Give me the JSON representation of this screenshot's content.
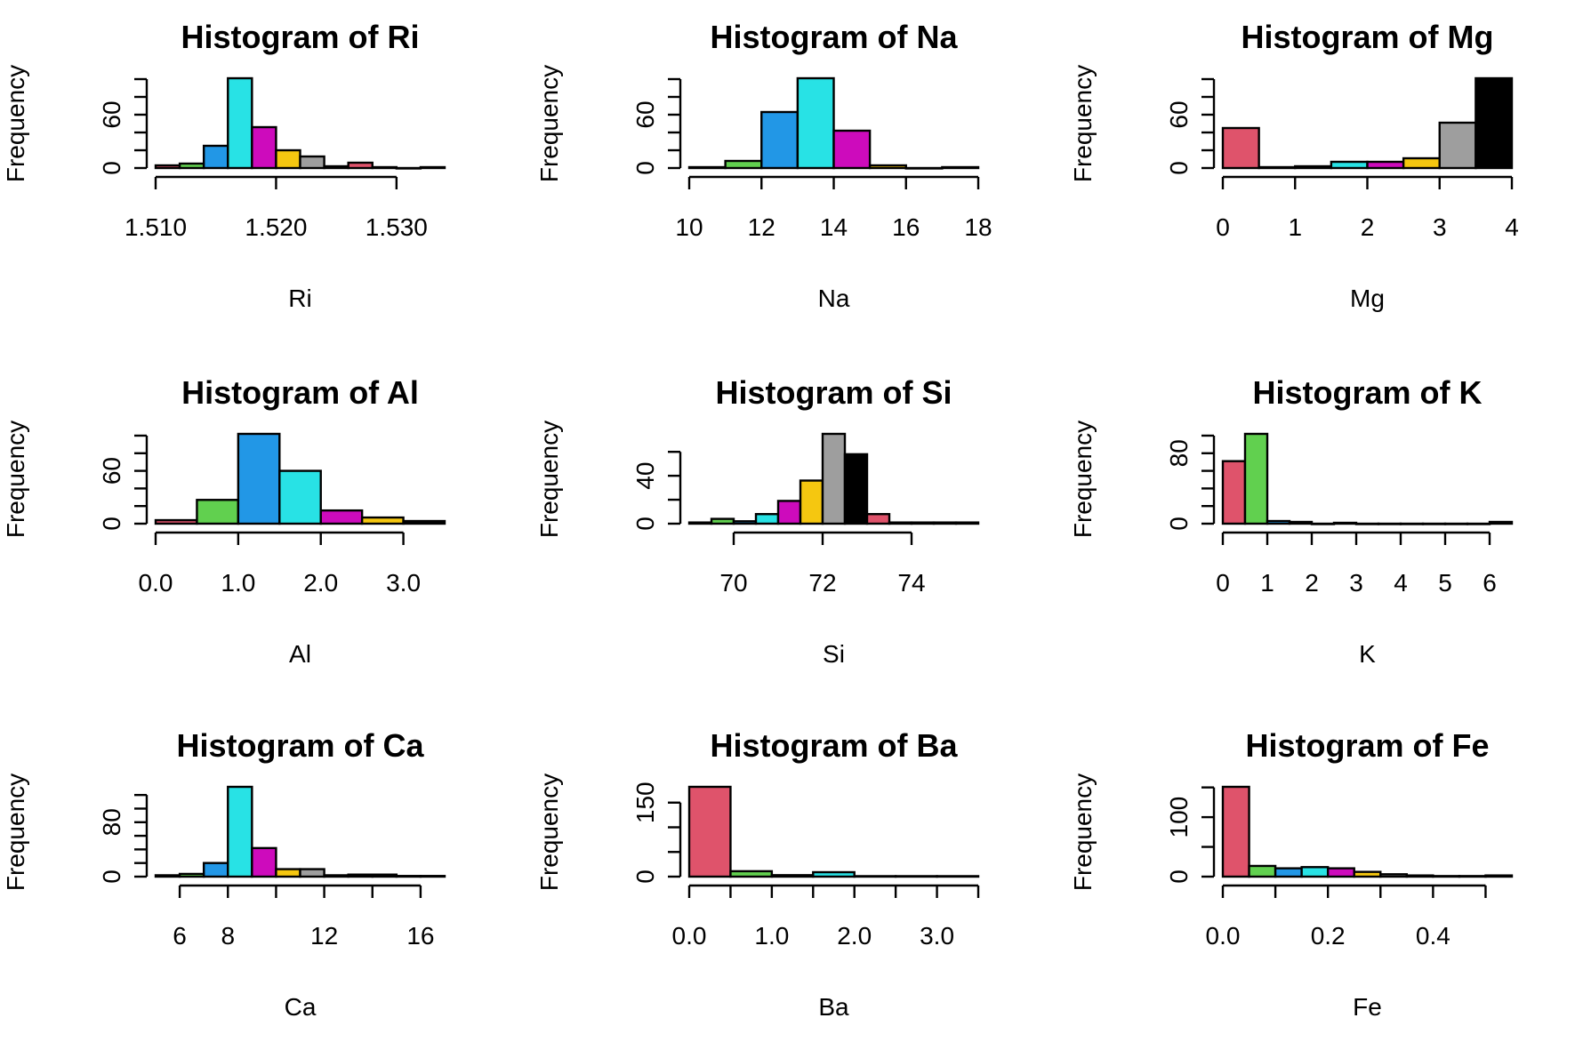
{
  "chart_data": [
    {
      "type": "bar",
      "title": "Histogram of Ri",
      "xlabel": "Ri",
      "ylabel": "Frequency",
      "bin_edges": [
        1.51,
        1.512,
        1.514,
        1.516,
        1.518,
        1.52,
        1.522,
        1.524,
        1.526,
        1.528,
        1.53,
        1.532,
        1.534
      ],
      "values": [
        3,
        5,
        25,
        101,
        46,
        20,
        13,
        2,
        6,
        1,
        0,
        1
      ],
      "colors": [
        "#DF536B",
        "#61D04F",
        "#2297E6",
        "#28E2E5",
        "#CD0BBC",
        "#F5C710",
        "#9E9E9E",
        "#000000",
        "#DF536B",
        "#61D04F",
        "#2297E6",
        "#28E2E5"
      ],
      "xticks": [
        1.51,
        1.52,
        1.53
      ],
      "xtick_labels": [
        "1.510",
        "1.520",
        "1.530"
      ],
      "yticks": [
        0,
        60
      ],
      "ytick_labels": [
        "0",
        "60"
      ],
      "ytick_minor": [
        0,
        20,
        40,
        60,
        80,
        100
      ],
      "xaxis": [
        1.51,
        1.534
      ],
      "ylim": [
        0,
        101
      ]
    },
    {
      "type": "bar",
      "title": "Histogram of Na",
      "xlabel": "Na",
      "ylabel": "Frequency",
      "bin_edges": [
        10,
        11,
        12,
        13,
        14,
        15,
        16,
        17,
        18
      ],
      "values": [
        1,
        8,
        63,
        101,
        42,
        3,
        0,
        1
      ],
      "colors": [
        "#DF536B",
        "#61D04F",
        "#2297E6",
        "#28E2E5",
        "#CD0BBC",
        "#F5C710",
        "#9E9E9E",
        "#000000"
      ],
      "xticks": [
        10,
        12,
        14,
        16,
        18
      ],
      "xtick_labels": [
        "10",
        "12",
        "14",
        "16",
        "18"
      ],
      "yticks": [
        0,
        60
      ],
      "ytick_labels": [
        "0",
        "60"
      ],
      "ytick_minor": [
        0,
        20,
        40,
        60,
        80,
        100
      ],
      "xaxis": [
        10,
        18
      ],
      "ylim": [
        0,
        101
      ]
    },
    {
      "type": "bar",
      "title": "Histogram of Mg",
      "xlabel": "Mg",
      "ylabel": "Frequency",
      "bin_edges": [
        0,
        0.5,
        1,
        1.5,
        2,
        2.5,
        3,
        3.5,
        4
      ],
      "values": [
        45,
        1,
        2,
        7,
        7,
        11,
        51,
        101
      ],
      "colors": [
        "#DF536B",
        "#61D04F",
        "#2297E6",
        "#28E2E5",
        "#CD0BBC",
        "#F5C710",
        "#9E9E9E",
        "#000000"
      ],
      "xticks": [
        0,
        1,
        2,
        3,
        4
      ],
      "xtick_labels": [
        "0",
        "1",
        "2",
        "3",
        "4"
      ],
      "yticks": [
        0,
        60
      ],
      "ytick_labels": [
        "0",
        "60"
      ],
      "ytick_minor": [
        0,
        20,
        40,
        60,
        80,
        100
      ],
      "xaxis": [
        0,
        4
      ],
      "ylim": [
        0,
        101
      ]
    },
    {
      "type": "bar",
      "title": "Histogram of Al",
      "xlabel": "Al",
      "ylabel": "Frequency",
      "bin_edges": [
        0,
        0.5,
        1,
        1.5,
        2,
        2.5,
        3,
        3.5
      ],
      "values": [
        4,
        27,
        102,
        60,
        15,
        7,
        3
      ],
      "colors": [
        "#DF536B",
        "#61D04F",
        "#2297E6",
        "#28E2E5",
        "#CD0BBC",
        "#F5C710",
        "#000000"
      ],
      "xticks": [
        0,
        1,
        2,
        3
      ],
      "xtick_labels": [
        "0.0",
        "1.0",
        "2.0",
        "3.0"
      ],
      "yticks": [
        0,
        60
      ],
      "ytick_labels": [
        "0",
        "60"
      ],
      "ytick_minor": [
        0,
        20,
        40,
        60,
        80,
        100
      ],
      "xaxis": [
        0,
        3.5
      ],
      "ylim": [
        0,
        102
      ]
    },
    {
      "type": "bar",
      "title": "Histogram of Si",
      "xlabel": "Si",
      "ylabel": "Frequency",
      "bin_edges": [
        69,
        69.5,
        70,
        70.5,
        71,
        71.5,
        72,
        72.5,
        73,
        73.5,
        74,
        74.5,
        75,
        75.5
      ],
      "values": [
        1,
        4,
        2,
        8,
        19,
        36,
        75,
        58,
        8,
        1,
        1,
        1,
        1
      ],
      "colors": [
        "#000000",
        "#61D04F",
        "#2297E6",
        "#28E2E5",
        "#CD0BBC",
        "#F5C710",
        "#9E9E9E",
        "#000000",
        "#DF536B",
        "#61D04F",
        "#2297E6",
        "#28E2E5",
        "#000000"
      ],
      "xticks": [
        70,
        72,
        74
      ],
      "xtick_labels": [
        "70",
        "72",
        "74"
      ],
      "yticks": [
        0,
        40
      ],
      "ytick_labels": [
        "0",
        "40"
      ],
      "ytick_minor": [
        0,
        20,
        40,
        60
      ],
      "xaxis": [
        69,
        75.5
      ],
      "ylim": [
        0,
        75
      ]
    },
    {
      "type": "bar",
      "title": "Histogram of K",
      "xlabel": "K",
      "ylabel": "Frequency",
      "bin_edges": [
        0,
        0.5,
        1,
        1.5,
        2,
        2.5,
        3,
        3.5,
        4,
        4.5,
        5,
        5.5,
        6,
        6.5
      ],
      "values": [
        71,
        102,
        3,
        2,
        0,
        1,
        0,
        0,
        0,
        0,
        0,
        0,
        2
      ],
      "colors": [
        "#DF536B",
        "#61D04F",
        "#2297E6",
        "#28E2E5",
        "#CD0BBC",
        "#F5C710",
        "#9E9E9E",
        "#000000",
        "#DF536B",
        "#61D04F",
        "#2297E6",
        "#28E2E5",
        "#000000"
      ],
      "xticks": [
        0,
        1,
        2,
        3,
        4,
        5,
        6
      ],
      "xtick_labels": [
        "0",
        "1",
        "2",
        "3",
        "4",
        "5",
        "6"
      ],
      "yticks": [
        0,
        80
      ],
      "ytick_labels": [
        "0",
        "80"
      ],
      "ytick_minor": [
        0,
        20,
        40,
        60,
        80,
        100
      ],
      "xaxis": [
        0,
        6.5
      ],
      "ylim": [
        0,
        102
      ]
    },
    {
      "type": "bar",
      "title": "Histogram of Ca",
      "xlabel": "Ca",
      "ylabel": "Frequency",
      "bin_edges": [
        5,
        6,
        7,
        8,
        9,
        10,
        11,
        12,
        13,
        14,
        15,
        16,
        17
      ],
      "values": [
        2,
        4,
        20,
        132,
        42,
        11,
        11,
        2,
        3,
        3,
        1,
        1
      ],
      "colors": [
        "#DF536B",
        "#61D04F",
        "#2297E6",
        "#28E2E5",
        "#CD0BBC",
        "#F5C710",
        "#9E9E9E",
        "#000000",
        "#DF536B",
        "#61D04F",
        "#2297E6",
        "#28E2E5"
      ],
      "xticks": [
        6,
        8,
        12,
        16
      ],
      "xtick_labels": [
        "6",
        "8",
        "12",
        "16"
      ],
      "xtick_minor": [
        6,
        8,
        10,
        12,
        14,
        16
      ],
      "yticks": [
        0,
        80
      ],
      "ytick_labels": [
        "0",
        "80"
      ],
      "ytick_minor": [
        0,
        20,
        40,
        60,
        80,
        100,
        120
      ],
      "xaxis": [
        5,
        17
      ],
      "ylim": [
        0,
        132
      ]
    },
    {
      "type": "bar",
      "title": "Histogram of Ba",
      "xlabel": "Ba",
      "ylabel": "Frequency",
      "bin_edges": [
        0,
        0.5,
        1,
        1.5,
        2,
        2.5,
        3,
        3.5
      ],
      "values": [
        182,
        11,
        3,
        9,
        1,
        1,
        1
      ],
      "colors": [
        "#DF536B",
        "#61D04F",
        "#2297E6",
        "#28E2E5",
        "#CD0BBC",
        "#F5C710",
        "#000000"
      ],
      "xticks": [
        0,
        1,
        2,
        3
      ],
      "xtick_labels": [
        "0.0",
        "1.0",
        "2.0",
        "3.0"
      ],
      "xtick_minor": [
        0,
        0.5,
        1,
        1.5,
        2,
        2.5,
        3,
        3.5
      ],
      "yticks": [
        0,
        150
      ],
      "ytick_labels": [
        "0",
        "150"
      ],
      "ytick_minor": [
        0,
        50,
        100,
        150
      ],
      "xaxis": [
        0,
        3.5
      ],
      "ylim": [
        0,
        182
      ]
    },
    {
      "type": "bar",
      "title": "Histogram of Fe",
      "xlabel": "Fe",
      "ylabel": "Frequency",
      "bin_edges": [
        0,
        0.05,
        0.1,
        0.15,
        0.2,
        0.25,
        0.3,
        0.35,
        0.4,
        0.45,
        0.5,
        0.55
      ],
      "values": [
        151,
        18,
        14,
        16,
        14,
        8,
        4,
        2,
        1,
        1,
        2
      ],
      "colors": [
        "#DF536B",
        "#61D04F",
        "#2297E6",
        "#28E2E5",
        "#CD0BBC",
        "#F5C710",
        "#9E9E9E",
        "#000000",
        "#DF536B",
        "#61D04F",
        "#000000"
      ],
      "xticks": [
        0,
        0.2,
        0.4
      ],
      "xtick_labels": [
        "0.0",
        "0.2",
        "0.4"
      ],
      "xtick_minor": [
        0,
        0.1,
        0.2,
        0.3,
        0.4,
        0.5
      ],
      "yticks": [
        0,
        100
      ],
      "ytick_labels": [
        "0",
        "100"
      ],
      "ytick_minor": [
        0,
        50,
        100,
        150
      ],
      "xaxis": [
        0,
        0.55
      ],
      "ylim": [
        0,
        151
      ]
    }
  ]
}
